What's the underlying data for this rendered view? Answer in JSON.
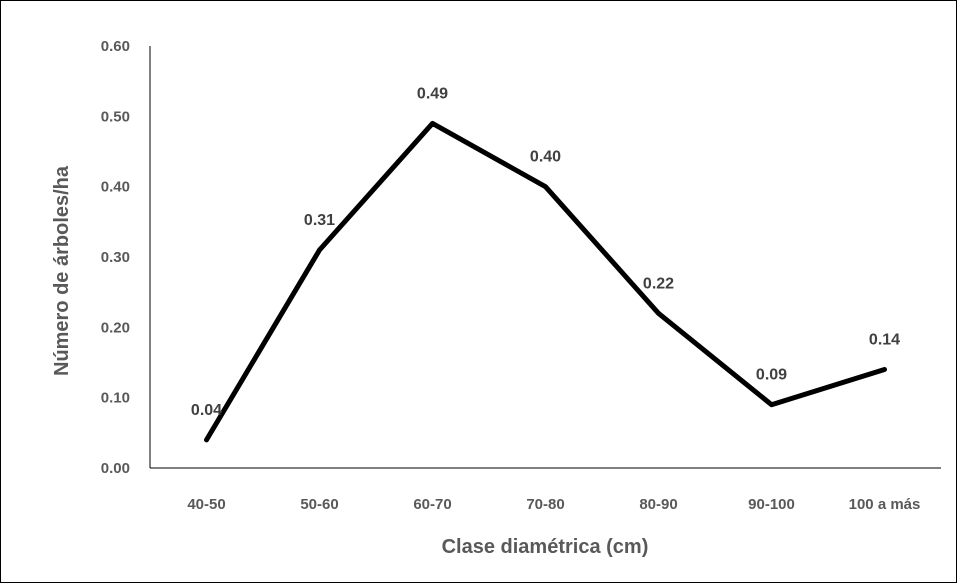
{
  "chart_data": {
    "type": "line",
    "title": "",
    "xlabel": "Clase diamétrica (cm)",
    "ylabel": "Número de árboles/ha",
    "categories": [
      "40-50",
      "50-60",
      "60-70",
      "70-80",
      "80-90",
      "90-100",
      "100 a más"
    ],
    "series": [
      {
        "values": [
          0.04,
          0.31,
          0.49,
          0.4,
          0.22,
          0.09,
          0.14
        ],
        "color": "#000000"
      }
    ],
    "data_labels": [
      "0.04",
      "0.31",
      "0.49",
      "0.40",
      "0.22",
      "0.09",
      "0.14"
    ],
    "yticks": [
      "0.00",
      "0.10",
      "0.20",
      "0.30",
      "0.40",
      "0.50",
      "0.60"
    ],
    "ylim": [
      0,
      0.6
    ],
    "grid": false,
    "legend": "none"
  }
}
